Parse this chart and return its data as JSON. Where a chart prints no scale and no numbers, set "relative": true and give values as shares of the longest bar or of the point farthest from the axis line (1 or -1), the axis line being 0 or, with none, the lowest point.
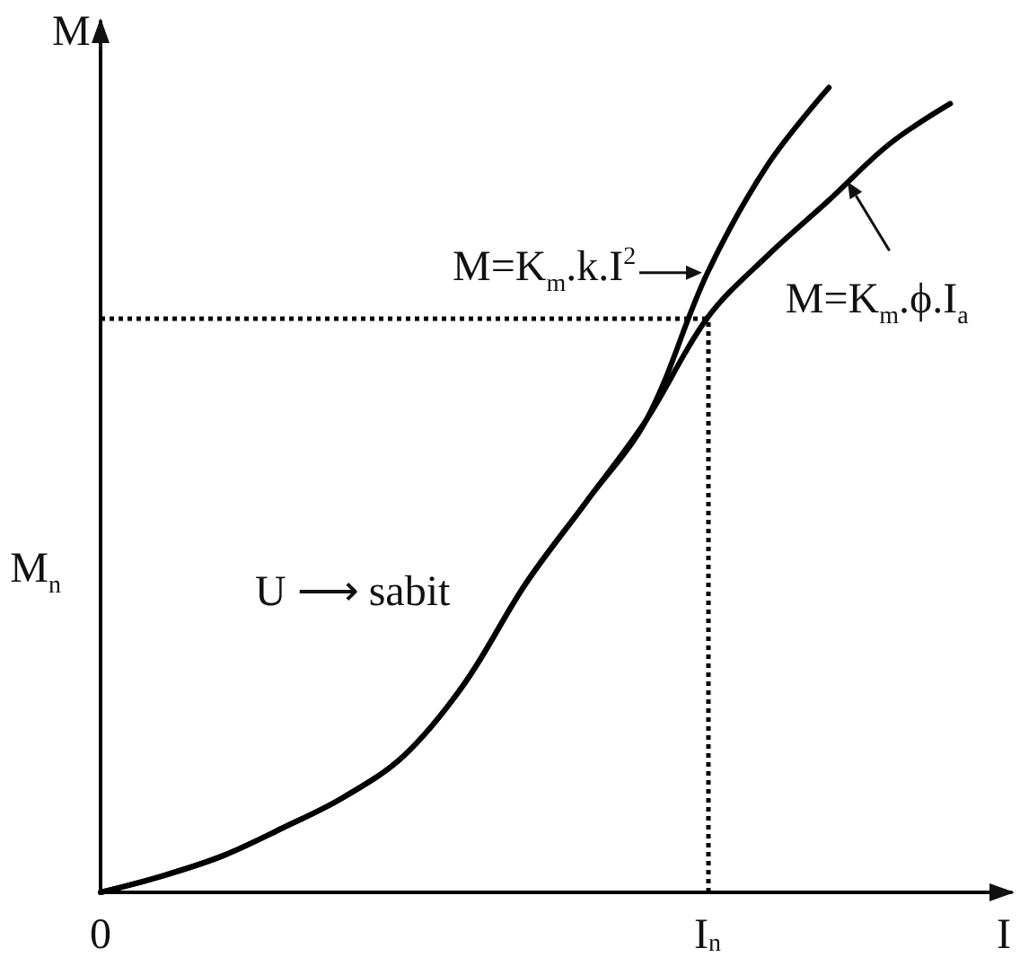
{
  "chart_data": {
    "type": "line",
    "relative": true,
    "xlabel": "I",
    "ylabel": "M",
    "categories": [
      "0",
      null,
      null,
      null,
      null,
      null,
      null,
      null,
      null,
      null,
      "I$_{n}$",
      null,
      null,
      null,
      null,
      null
    ],
    "series": [
      {
        "color": "#000000",
        "values": [
          0,
          0.02,
          0.045,
          0.08,
          0.118,
          0.17,
          0.26,
          0.383,
          0.485,
          0.588,
          0.77,
          0.905,
          1.0,
          null,
          null,
          null
        ]
      },
      {
        "color": "#000000",
        "values": [
          0,
          0.02,
          0.045,
          0.08,
          0.118,
          0.17,
          0.26,
          0.383,
          0.485,
          0.588,
          0.714,
          0.792,
          0.86,
          0.93,
          0.98,
          null
        ]
      }
    ],
    "ref_lines": [
      {
        "axis": "x",
        "value": "I$_{n}$",
        "line_style": "dotted"
      },
      {
        "axis": "y",
        "value": 0.714,
        "line_style": "dotted"
      }
    ],
    "annotations": [
      {
        "text": "M=K$_{m}$.k.I$^{2}$",
        "x": "I$_{n}$",
        "y": 0.77
      },
      "M=K$_{m}$.ϕ.I$_{a}$",
      "M$_{n}$",
      "U ⟶ sabit"
    ],
    "grid": false,
    "marker": "none",
    "line_style": "solid"
  }
}
